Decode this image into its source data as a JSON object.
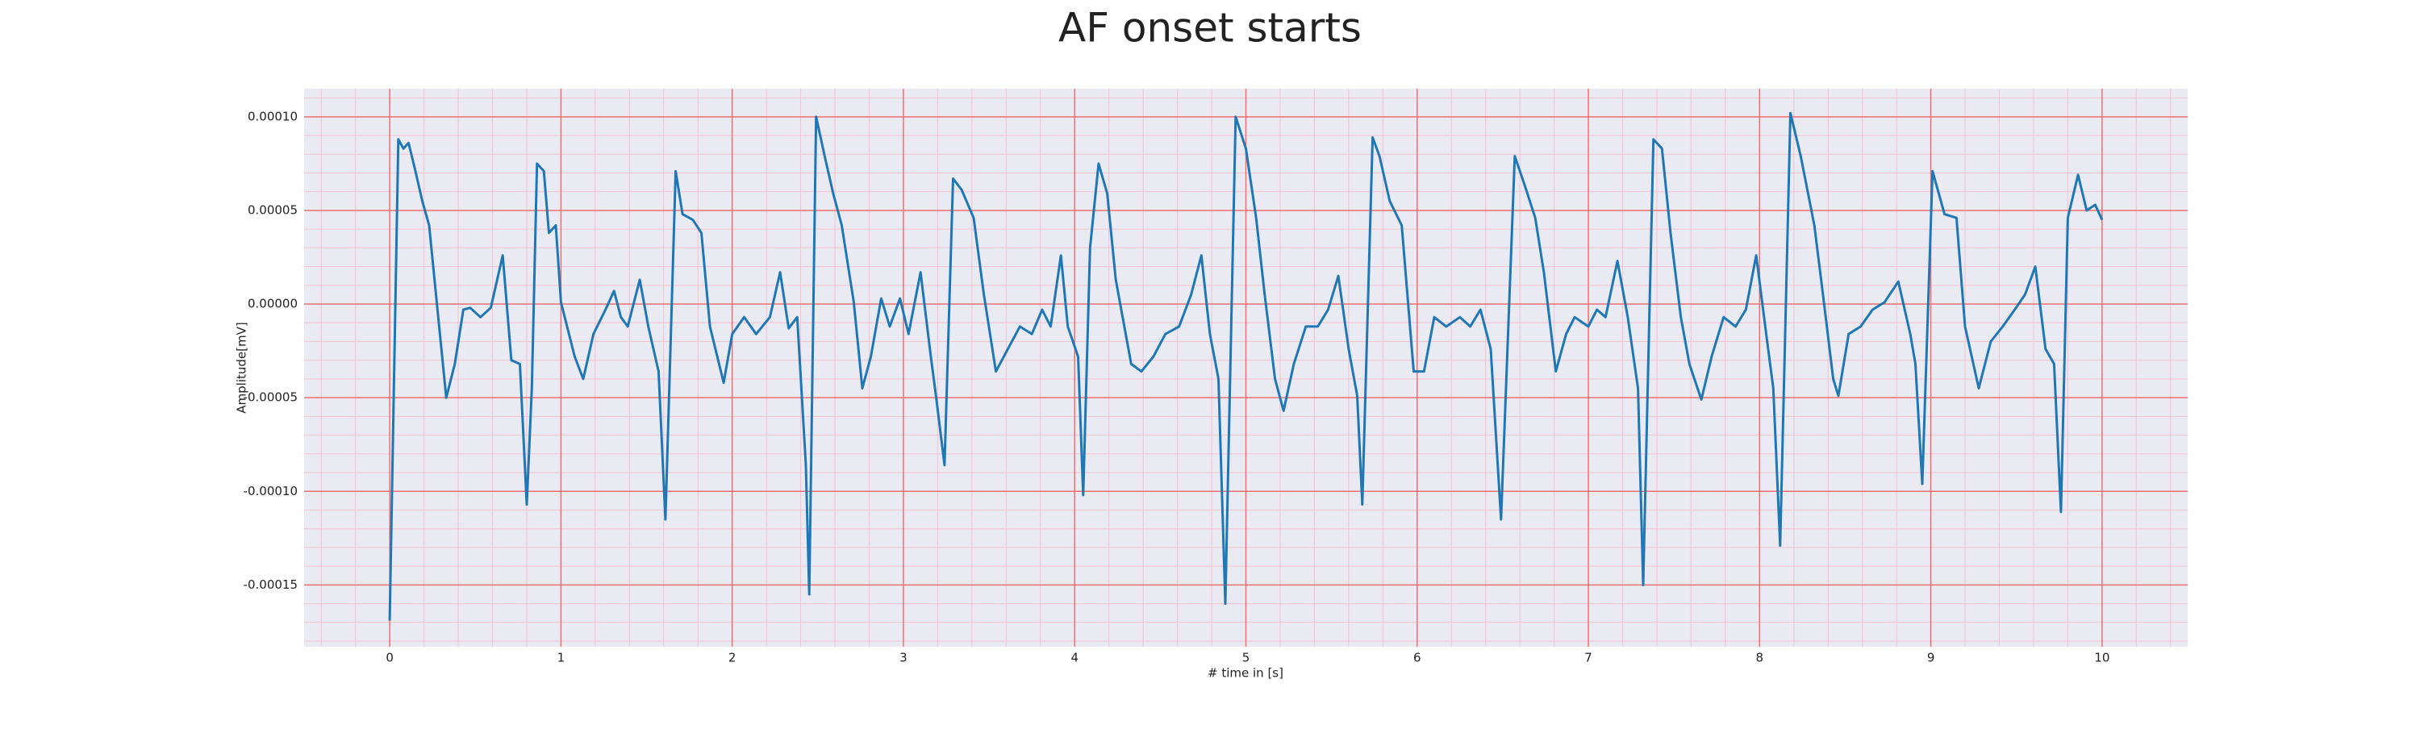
{
  "chart_data": {
    "type": "line",
    "title": "AF onset starts",
    "x_label": "# time in [s]",
    "y_label": "Amplitude[mV]",
    "xlim": [
      -0.5,
      10.5
    ],
    "ylim": [
      -0.000183,
      0.000115
    ],
    "xticks": [
      0,
      1,
      2,
      3,
      4,
      5,
      6,
      7,
      8,
      9,
      10
    ],
    "yticks": [
      {
        "value": -0.00015,
        "label": "-0.00015"
      },
      {
        "value": -0.0001,
        "label": "-0.00010"
      },
      {
        "value": -5e-05,
        "label": "-0.00005"
      },
      {
        "value": 0,
        "label": "0.00000"
      },
      {
        "value": 5e-05,
        "label": "0.00005"
      },
      {
        "value": 0.0001,
        "label": "0.00010"
      }
    ],
    "grid": true,
    "minor_grid": true,
    "grid_color": "#f07070",
    "minor_grid_color": "#f3c2cf",
    "background": "#eaeaf2",
    "series": [
      {
        "name": "Amplitude",
        "color": "#1f77b4",
        "x": [
          0,
          0.05,
          0.08,
          0.11,
          0.15,
          0.19,
          0.23,
          0.27,
          0.33,
          0.38,
          0.43,
          0.47,
          0.53,
          0.59,
          0.66,
          0.71,
          0.76,
          0.8,
          0.83,
          0.86,
          0.9,
          0.93,
          0.97,
          1.0,
          1.08,
          1.13,
          1.19,
          1.26,
          1.31,
          1.35,
          1.39,
          1.46,
          1.51,
          1.57,
          1.61,
          1.67,
          1.71,
          1.77,
          1.82,
          1.87,
          1.95,
          2.0,
          2.07,
          2.14,
          2.22,
          2.28,
          2.33,
          2.38,
          2.43,
          2.45,
          2.49,
          2.54,
          2.59,
          2.64,
          2.71,
          2.76,
          2.81,
          2.87,
          2.92,
          2.98,
          3.03,
          3.1,
          3.16,
          3.19,
          3.24,
          3.29,
          3.34,
          3.41,
          3.47,
          3.54,
          3.61,
          3.68,
          3.75,
          3.81,
          3.86,
          3.92,
          3.96,
          4.02,
          4.05,
          4.09,
          4.14,
          4.19,
          4.24,
          4.33,
          4.39,
          4.46,
          4.53,
          4.61,
          4.68,
          4.74,
          4.79,
          4.84,
          4.88,
          4.94,
          5.0,
          5.06,
          5.11,
          5.17,
          5.22,
          5.28,
          5.35,
          5.42,
          5.48,
          5.54,
          5.6,
          5.65,
          5.68,
          5.74,
          5.78,
          5.84,
          5.91,
          5.98,
          6.04,
          6.1,
          6.17,
          6.25,
          6.31,
          6.37,
          6.43,
          6.49,
          6.57,
          6.63,
          6.69,
          6.74,
          6.81,
          6.87,
          6.92,
          7.0,
          7.05,
          7.1,
          7.17,
          7.23,
          7.29,
          7.32,
          7.38,
          7.43,
          7.48,
          7.54,
          7.59,
          7.66,
          7.72,
          7.79,
          7.86,
          7.92,
          7.98,
          8.05,
          8.08,
          8.12,
          8.18,
          8.24,
          8.32,
          8.37,
          8.43,
          8.46,
          8.52,
          8.59,
          8.66,
          8.73,
          8.81,
          8.88,
          8.91,
          8.95,
          9.01,
          9.08,
          9.15,
          9.2,
          9.28,
          9.35,
          9.42,
          9.49,
          9.55,
          9.61,
          9.67,
          9.72,
          9.76,
          9.8,
          9.86,
          9.91,
          9.96,
          10.0
        ],
        "values": [
          -0.000169,
          8.8e-05,
          8.3e-05,
          8.6e-05,
          7.1e-05,
          5.5e-05,
          4.2e-05,
          5e-06,
          -5e-05,
          -3.2e-05,
          -3e-06,
          -2e-06,
          -7e-06,
          -2e-06,
          2.6e-05,
          -3e-05,
          -3.2e-05,
          -0.000107,
          -4.5e-05,
          7.5e-05,
          7.1e-05,
          3.8e-05,
          4.2e-05,
          1e-06,
          -2.8e-05,
          -4e-05,
          -1.6e-05,
          -3e-06,
          7e-06,
          -7e-06,
          -1.2e-05,
          1.3e-05,
          -1.2e-05,
          -3.6e-05,
          -0.000115,
          7.1e-05,
          4.8e-05,
          4.5e-05,
          3.8e-05,
          -1.2e-05,
          -4.2e-05,
          -1.6e-05,
          -7e-06,
          -1.6e-05,
          -7e-06,
          1.7e-05,
          -1.3e-05,
          -7e-06,
          -8.6e-05,
          -0.000155,
          0.0001,
          7.9e-05,
          5.9e-05,
          4.2e-05,
          1e-06,
          -4.5e-05,
          -2.8e-05,
          3e-06,
          -1.2e-05,
          3e-06,
          -1.6e-05,
          1.7e-05,
          -2.8e-05,
          -4.9e-05,
          -8.6e-05,
          6.7e-05,
          6.1e-05,
          4.6e-05,
          5e-06,
          -3.6e-05,
          -2.4e-05,
          -1.2e-05,
          -1.6e-05,
          -3e-06,
          -1.2e-05,
          2.6e-05,
          -1.2e-05,
          -2.8e-05,
          -0.000102,
          3e-05,
          7.5e-05,
          5.9e-05,
          1.3e-05,
          -3.2e-05,
          -3.6e-05,
          -2.8e-05,
          -1.6e-05,
          -1.2e-05,
          5e-06,
          2.6e-05,
          -1.6e-05,
          -4e-05,
          -0.00016,
          0.0001,
          8.3e-05,
          4.6e-05,
          5e-06,
          -4e-05,
          -5.7e-05,
          -3.2e-05,
          -1.2e-05,
          -1.2e-05,
          -3e-06,
          1.5e-05,
          -2.4e-05,
          -4.9e-05,
          -0.000107,
          8.9e-05,
          7.9e-05,
          5.5e-05,
          4.2e-05,
          -3.6e-05,
          -3.6e-05,
          -7e-06,
          -1.2e-05,
          -7e-06,
          -1.2e-05,
          -3e-06,
          -2.4e-05,
          -0.000115,
          7.9e-05,
          6.3e-05,
          4.6e-05,
          1.7e-05,
          -3.6e-05,
          -1.6e-05,
          -7e-06,
          -1.2e-05,
          -3e-06,
          -7e-06,
          2.3e-05,
          -7e-06,
          -4.5e-05,
          -0.00015,
          8.8e-05,
          8.3e-05,
          3.8e-05,
          -7e-06,
          -3.2e-05,
          -5.1e-05,
          -2.8e-05,
          -7e-06,
          -1.2e-05,
          -3e-06,
          2.6e-05,
          -2.4e-05,
          -4.5e-05,
          -0.000129,
          0.000102,
          7.9e-05,
          4.2e-05,
          5e-06,
          -4e-05,
          -4.9e-05,
          -1.6e-05,
          -1.2e-05,
          -3e-06,
          1e-06,
          1.2e-05,
          -1.6e-05,
          -3.2e-05,
          -9.6e-05,
          7.1e-05,
          4.8e-05,
          4.6e-05,
          -1.2e-05,
          -4.5e-05,
          -2e-05,
          -1.2e-05,
          -3e-06,
          5e-06,
          2e-05,
          -2.4e-05,
          -3.2e-05,
          -0.000111,
          4.6e-05,
          6.9e-05,
          5e-05,
          5.3e-05,
          4.5e-05
        ]
      }
    ]
  }
}
